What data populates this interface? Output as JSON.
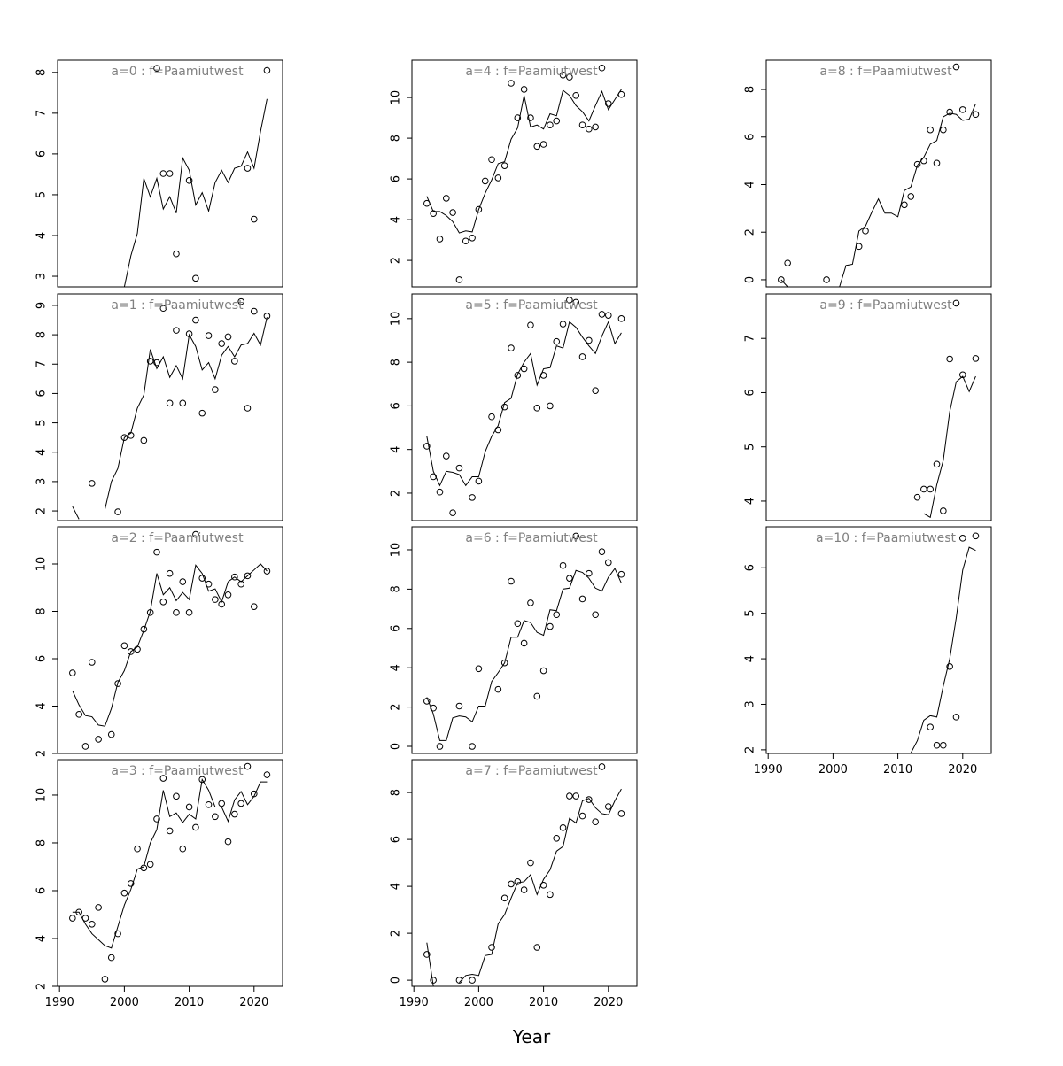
{
  "x_label": "Year",
  "chart_data": [
    {
      "type": "scatter",
      "title": "a=0 : f=Paamiutwest",
      "xlim": [
        1989.7,
        2024.4
      ],
      "ylim": [
        2.74,
        8.3
      ],
      "yticks": [
        3,
        4,
        5,
        6,
        7,
        8
      ],
      "x": [
        1992,
        1993,
        1994,
        1995,
        1996,
        1997,
        1998,
        1999,
        2000,
        2001,
        2002,
        2003,
        2004,
        2005,
        2006,
        2007,
        2008,
        2009,
        2010,
        2011,
        2012,
        2013,
        2014,
        2015,
        2016,
        2017,
        2018,
        2019,
        2020,
        2021,
        2022
      ],
      "points": [
        null,
        null,
        null,
        null,
        null,
        null,
        null,
        null,
        null,
        null,
        null,
        null,
        null,
        8.1,
        5.52,
        5.52,
        3.55,
        null,
        5.35,
        2.95,
        null,
        null,
        null,
        null,
        null,
        null,
        null,
        5.65,
        4.4,
        null,
        8.05
      ],
      "line": [
        null,
        null,
        null,
        null,
        null,
        null,
        null,
        null,
        2.74,
        3.5,
        4.05,
        5.4,
        4.95,
        5.4,
        4.65,
        4.95,
        4.55,
        5.9,
        5.6,
        4.75,
        5.05,
        4.6,
        5.3,
        5.6,
        5.3,
        5.65,
        5.7,
        6.05,
        5.65,
        6.55,
        7.35
      ]
    },
    {
      "type": "scatter",
      "title": "a=1 : f=Paamiutwest",
      "xlim": [
        1989.7,
        2024.4
      ],
      "ylim": [
        1.67,
        9.39
      ],
      "yticks": [
        2,
        3,
        4,
        5,
        6,
        7,
        8,
        9
      ],
      "x": [
        1992,
        1993,
        1994,
        1995,
        1996,
        1997,
        1998,
        1999,
        2000,
        2001,
        2002,
        2003,
        2004,
        2005,
        2006,
        2007,
        2008,
        2009,
        2010,
        2011,
        2012,
        2013,
        2014,
        2015,
        2016,
        2017,
        2018,
        2019,
        2020,
        2021,
        2022
      ],
      "points": [
        null,
        null,
        null,
        2.94,
        null,
        null,
        null,
        1.97,
        4.5,
        4.57,
        null,
        4.4,
        7.1,
        7.05,
        8.9,
        5.67,
        8.15,
        5.67,
        8.03,
        8.5,
        5.33,
        7.97,
        6.13,
        7.7,
        7.93,
        7.1,
        9.13,
        5.5,
        8.8,
        null,
        8.64
      ],
      "line": [
        2.15,
        1.72,
        null,
        null,
        null,
        2.05,
        3.0,
        3.45,
        4.5,
        4.65,
        5.5,
        5.95,
        7.5,
        6.85,
        7.25,
        6.55,
        6.95,
        6.5,
        8.0,
        7.6,
        6.8,
        7.05,
        6.5,
        7.3,
        7.6,
        7.25,
        7.65,
        7.7,
        8.05,
        7.65,
        8.6
      ]
    },
    {
      "type": "scatter",
      "title": "a=2 : f=Paamiutwest",
      "xlim": [
        1989.7,
        2024.4
      ],
      "ylim": [
        2.0,
        11.57
      ],
      "yticks": [
        2,
        4,
        6,
        8,
        10
      ],
      "x": [
        1992,
        1993,
        1994,
        1995,
        1996,
        1997,
        1998,
        1999,
        2000,
        2001,
        2002,
        2003,
        2004,
        2005,
        2006,
        2007,
        2008,
        2009,
        2010,
        2011,
        2012,
        2013,
        2014,
        2015,
        2016,
        2017,
        2018,
        2019,
        2020,
        2021,
        2022
      ],
      "points": [
        5.4,
        3.65,
        2.3,
        5.85,
        2.6,
        null,
        2.8,
        4.95,
        6.55,
        6.3,
        6.4,
        7.25,
        7.95,
        10.5,
        8.4,
        9.6,
        7.95,
        9.25,
        7.95,
        11.25,
        9.4,
        9.15,
        8.5,
        8.3,
        8.7,
        9.45,
        9.15,
        9.5,
        8.2,
        null,
        9.7
      ],
      "line": [
        4.65,
        4.05,
        3.6,
        3.55,
        3.2,
        3.15,
        3.9,
        5.0,
        5.5,
        6.3,
        6.5,
        7.2,
        8.0,
        9.6,
        8.7,
        9.0,
        8.45,
        8.8,
        8.5,
        9.95,
        9.6,
        8.85,
        8.95,
        8.4,
        9.25,
        9.45,
        9.25,
        9.5,
        9.75,
        10.0,
        9.7
      ]
    },
    {
      "type": "scatter",
      "title": "a=3 : f=Paamiutwest",
      "xlim": [
        1989.7,
        2024.4
      ],
      "ylim": [
        2.0,
        11.48
      ],
      "yticks": [
        2,
        4,
        6,
        8,
        10
      ],
      "xticks": [
        1990,
        2000,
        2010,
        2020
      ],
      "x": [
        1992,
        1993,
        1994,
        1995,
        1996,
        1997,
        1998,
        1999,
        2000,
        2001,
        2002,
        2003,
        2004,
        2005,
        2006,
        2007,
        2008,
        2009,
        2010,
        2011,
        2012,
        2013,
        2014,
        2015,
        2016,
        2017,
        2018,
        2019,
        2020,
        2021,
        2022
      ],
      "points": [
        4.85,
        5.1,
        4.85,
        4.6,
        5.3,
        2.3,
        3.2,
        4.2,
        5.9,
        6.3,
        7.75,
        6.95,
        7.1,
        9.0,
        10.7,
        8.5,
        9.95,
        7.75,
        9.5,
        8.65,
        10.65,
        9.6,
        9.1,
        9.65,
        8.05,
        9.2,
        9.65,
        11.2,
        10.05,
        null,
        10.85
      ],
      "line": [
        5.1,
        5.1,
        4.6,
        4.2,
        3.95,
        3.7,
        3.6,
        4.5,
        5.4,
        6.05,
        6.9,
        7.0,
        8.0,
        8.55,
        10.2,
        9.1,
        9.25,
        8.85,
        9.2,
        9.0,
        10.65,
        10.2,
        9.5,
        9.5,
        8.9,
        9.8,
        10.15,
        9.6,
        9.95,
        10.55,
        10.55
      ]
    },
    {
      "type": "scatter",
      "title": "a=4 : f=Paamiutwest",
      "xlim": [
        1989.7,
        2024.4
      ],
      "ylim": [
        0.7,
        11.83
      ],
      "yticks": [
        2,
        4,
        6,
        8,
        10
      ],
      "x": [
        1992,
        1993,
        1994,
        1995,
        1996,
        1997,
        1998,
        1999,
        2000,
        2001,
        2002,
        2003,
        2004,
        2005,
        2006,
        2007,
        2008,
        2009,
        2010,
        2011,
        2012,
        2013,
        2014,
        2015,
        2016,
        2017,
        2018,
        2019,
        2020,
        2021,
        2022
      ],
      "points": [
        4.8,
        4.3,
        3.05,
        5.05,
        4.35,
        1.05,
        2.95,
        3.1,
        4.5,
        5.9,
        6.95,
        6.05,
        6.65,
        10.7,
        9.0,
        10.4,
        9.0,
        7.6,
        7.7,
        8.65,
        8.85,
        11.1,
        11.0,
        10.1,
        8.65,
        8.45,
        8.55,
        11.45,
        9.7,
        null,
        10.15
      ],
      "line": [
        5.15,
        4.4,
        4.4,
        4.2,
        3.9,
        3.35,
        3.45,
        3.4,
        4.5,
        5.3,
        5.95,
        6.75,
        6.85,
        7.95,
        8.5,
        10.1,
        8.55,
        8.65,
        8.45,
        9.2,
        9.1,
        10.35,
        10.1,
        9.6,
        9.3,
        8.85,
        9.6,
        10.3,
        9.4,
        9.9,
        10.4
      ]
    },
    {
      "type": "scatter",
      "title": "a=5 : f=Paamiutwest",
      "xlim": [
        1989.7,
        2024.4
      ],
      "ylim": [
        0.74,
        11.13
      ],
      "yticks": [
        2,
        4,
        6,
        8,
        10
      ],
      "x": [
        1992,
        1993,
        1994,
        1995,
        1996,
        1997,
        1998,
        1999,
        2000,
        2001,
        2002,
        2003,
        2004,
        2005,
        2006,
        2007,
        2008,
        2009,
        2010,
        2011,
        2012,
        2013,
        2014,
        2015,
        2016,
        2017,
        2018,
        2019,
        2020,
        2021,
        2022
      ],
      "points": [
        4.15,
        2.75,
        2.05,
        3.7,
        1.1,
        3.15,
        null,
        1.8,
        2.55,
        null,
        5.5,
        4.9,
        5.95,
        8.65,
        7.4,
        7.7,
        9.7,
        5.9,
        7.4,
        6.0,
        8.95,
        9.75,
        10.85,
        10.75,
        8.25,
        9.0,
        6.7,
        10.2,
        10.15,
        null,
        10.0
      ],
      "line": [
        4.6,
        3.0,
        2.35,
        3.0,
        2.95,
        2.85,
        2.35,
        2.75,
        2.75,
        3.9,
        4.6,
        5.1,
        6.15,
        6.35,
        7.45,
        8.0,
        8.4,
        6.95,
        7.7,
        7.75,
        8.75,
        8.65,
        9.85,
        9.6,
        9.15,
        8.75,
        8.4,
        9.2,
        9.85,
        8.85,
        9.35
      ]
    },
    {
      "type": "scatter",
      "title": "a=6 : f=Paamiutwest",
      "xlim": [
        1989.7,
        2024.4
      ],
      "ylim": [
        -0.36,
        11.17
      ],
      "yticks": [
        0,
        2,
        4,
        6,
        8,
        10
      ],
      "x": [
        1992,
        1993,
        1994,
        1995,
        1996,
        1997,
        1998,
        1999,
        2000,
        2001,
        2002,
        2003,
        2004,
        2005,
        2006,
        2007,
        2008,
        2009,
        2010,
        2011,
        2012,
        2013,
        2014,
        2015,
        2016,
        2017,
        2018,
        2019,
        2020,
        2021,
        2022
      ],
      "points": [
        2.3,
        1.95,
        0,
        null,
        null,
        2.05,
        null,
        0,
        3.95,
        null,
        null,
        2.9,
        4.25,
        8.4,
        6.25,
        5.25,
        7.3,
        2.55,
        3.85,
        6.1,
        6.7,
        9.2,
        8.55,
        10.7,
        7.5,
        8.8,
        6.7,
        9.9,
        9.35,
        null,
        8.75
      ],
      "line": [
        2.5,
        1.65,
        0.3,
        0.3,
        1.45,
        1.55,
        1.5,
        1.25,
        2.05,
        2.05,
        3.3,
        3.75,
        4.25,
        5.55,
        5.55,
        6.4,
        6.3,
        5.8,
        5.65,
        6.95,
        6.9,
        8.0,
        8.05,
        8.95,
        8.85,
        8.55,
        8.05,
        7.9,
        8.6,
        9.05,
        8.3
      ]
    },
    {
      "type": "scatter",
      "title": "a=7 : f=Paamiutwest",
      "xlim": [
        1989.7,
        2024.4
      ],
      "ylim": [
        -0.26,
        9.4
      ],
      "yticks": [
        0,
        2,
        4,
        6,
        8
      ],
      "xticks": [
        1990,
        2000,
        2010,
        2020
      ],
      "x": [
        1992,
        1993,
        1994,
        1995,
        1996,
        1997,
        1998,
        1999,
        2000,
        2001,
        2002,
        2003,
        2004,
        2005,
        2006,
        2007,
        2008,
        2009,
        2010,
        2011,
        2012,
        2013,
        2014,
        2015,
        2016,
        2017,
        2018,
        2019,
        2020,
        2021,
        2022
      ],
      "points": [
        1.1,
        0,
        null,
        null,
        null,
        0,
        null,
        0,
        null,
        null,
        1.4,
        null,
        3.5,
        4.1,
        4.2,
        3.85,
        5.0,
        1.4,
        4.05,
        3.65,
        6.05,
        6.5,
        7.85,
        7.85,
        7.0,
        7.7,
        6.75,
        9.1,
        7.4,
        null,
        7.1
      ],
      "line": [
        1.6,
        -0.25,
        null,
        null,
        null,
        -0.1,
        0.2,
        0.25,
        0.2,
        1.05,
        1.1,
        2.4,
        2.8,
        3.5,
        4.15,
        4.2,
        4.5,
        3.65,
        4.3,
        4.7,
        5.5,
        5.7,
        6.9,
        6.7,
        7.65,
        7.75,
        7.35,
        7.1,
        7.05,
        7.65,
        8.15
      ]
    },
    {
      "type": "scatter",
      "title": "a=8 : f=Paamiutwest",
      "xlim": [
        1989.7,
        2024.4
      ],
      "ylim": [
        -0.3,
        9.23
      ],
      "yticks": [
        0,
        2,
        4,
        6,
        8
      ],
      "x": [
        1992,
        1993,
        1994,
        1995,
        1996,
        1997,
        1998,
        1999,
        2000,
        2001,
        2002,
        2003,
        2004,
        2005,
        2006,
        2007,
        2008,
        2009,
        2010,
        2011,
        2012,
        2013,
        2014,
        2015,
        2016,
        2017,
        2018,
        2019,
        2020,
        2021,
        2022
      ],
      "points": [
        0,
        0.7,
        null,
        null,
        null,
        null,
        null,
        0,
        null,
        null,
        null,
        null,
        1.4,
        2.05,
        null,
        null,
        null,
        null,
        null,
        3.15,
        3.5,
        4.85,
        5.0,
        6.3,
        4.9,
        6.3,
        7.05,
        8.95,
        7.15,
        null,
        6.95
      ],
      "line": [
        0,
        -0.3,
        null,
        null,
        null,
        null,
        null,
        null,
        -0.3,
        -0.3,
        0.6,
        0.65,
        2.05,
        2.25,
        2.85,
        3.4,
        2.8,
        2.8,
        2.65,
        3.75,
        3.9,
        4.8,
        5.15,
        5.7,
        5.85,
        6.85,
        7.0,
        6.95,
        6.7,
        6.75,
        7.4
      ]
    },
    {
      "type": "scatter",
      "title": "a=9 : f=Paamiutwest",
      "xlim": [
        1989.7,
        2024.4
      ],
      "ylim": [
        3.64,
        7.82
      ],
      "yticks": [
        4,
        5,
        6,
        7
      ],
      "x": [
        1992,
        1993,
        1994,
        1995,
        1996,
        1997,
        1998,
        1999,
        2000,
        2001,
        2002,
        2003,
        2004,
        2005,
        2006,
        2007,
        2008,
        2009,
        2010,
        2011,
        2012,
        2013,
        2014,
        2015,
        2016,
        2017,
        2018,
        2019,
        2020,
        2021,
        2022
      ],
      "points": [
        null,
        null,
        null,
        null,
        null,
        null,
        null,
        null,
        null,
        null,
        null,
        null,
        null,
        null,
        null,
        null,
        null,
        null,
        null,
        null,
        null,
        4.07,
        4.22,
        4.22,
        4.68,
        3.82,
        6.62,
        7.65,
        6.33,
        null,
        6.63
      ],
      "line": [
        null,
        null,
        null,
        null,
        null,
        null,
        null,
        null,
        null,
        null,
        null,
        null,
        null,
        null,
        null,
        null,
        null,
        null,
        null,
        null,
        null,
        null,
        3.77,
        3.7,
        4.3,
        4.75,
        5.65,
        6.2,
        6.3,
        6.02,
        6.3
      ]
    },
    {
      "type": "scatter",
      "title": "a=10 : f=Paamiutwest",
      "xlim": [
        1989.7,
        2024.4
      ],
      "ylim": [
        1.92,
        6.9
      ],
      "yticks": [
        2,
        3,
        4,
        5,
        6
      ],
      "xticks": [
        1990,
        2000,
        2010,
        2020
      ],
      "x": [
        1992,
        1993,
        1994,
        1995,
        1996,
        1997,
        1998,
        1999,
        2000,
        2001,
        2002,
        2003,
        2004,
        2005,
        2006,
        2007,
        2008,
        2009,
        2010,
        2011,
        2012,
        2013,
        2014,
        2015,
        2016,
        2017,
        2018,
        2019,
        2020,
        2021,
        2022
      ],
      "points": [
        null,
        null,
        null,
        null,
        null,
        null,
        null,
        null,
        null,
        null,
        null,
        null,
        null,
        null,
        null,
        null,
        null,
        null,
        null,
        null,
        null,
        null,
        null,
        2.5,
        2.1,
        2.1,
        3.83,
        2.72,
        6.65,
        null,
        6.7
      ],
      "line": [
        null,
        null,
        null,
        null,
        null,
        null,
        null,
        null,
        null,
        null,
        null,
        null,
        null,
        null,
        null,
        null,
        null,
        null,
        null,
        null,
        1.93,
        2.2,
        2.65,
        2.75,
        2.72,
        3.4,
        4.0,
        4.9,
        5.95,
        6.45,
        6.38
      ]
    }
  ]
}
